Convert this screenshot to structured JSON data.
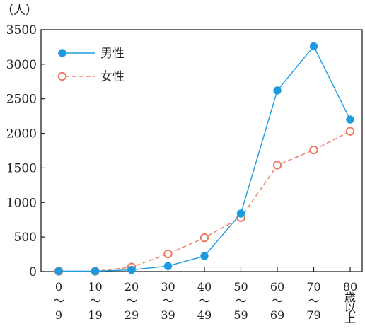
{
  "chart_data": {
    "type": "line",
    "title": "",
    "xlabel": "",
    "ylabel": "（人）",
    "ylim": [
      0,
      3500
    ],
    "yticks": [
      "0",
      "500",
      "1000",
      "1500",
      "2000",
      "2500",
      "3000",
      "3500"
    ],
    "grid": false,
    "legend": "top-left",
    "categories": [
      {
        "lines": [
          "0",
          "～",
          "9"
        ]
      },
      {
        "lines": [
          "10",
          "～",
          "19"
        ]
      },
      {
        "lines": [
          "20",
          "～",
          "29"
        ]
      },
      {
        "lines": [
          "30",
          "～",
          "39"
        ]
      },
      {
        "lines": [
          "40",
          "～",
          "49"
        ]
      },
      {
        "lines": [
          "50",
          "～",
          "59"
        ]
      },
      {
        "lines": [
          "60",
          "～",
          "69"
        ]
      },
      {
        "lines": [
          "70",
          "～",
          "79"
        ]
      },
      {
        "lines": [
          "80",
          "歳",
          "以",
          "上"
        ]
      }
    ],
    "series": [
      {
        "name": "男性",
        "color": "#1e9be0",
        "style": "solid",
        "marker": "filled-circle",
        "values": [
          5,
          5,
          25,
          80,
          225,
          840,
          2620,
          3260,
          2200
        ]
      },
      {
        "name": "女性",
        "color": "#f07a60",
        "style": "dashed",
        "marker": "open-circle",
        "values": [
          5,
          5,
          65,
          255,
          490,
          780,
          1540,
          1760,
          2030
        ]
      }
    ]
  }
}
